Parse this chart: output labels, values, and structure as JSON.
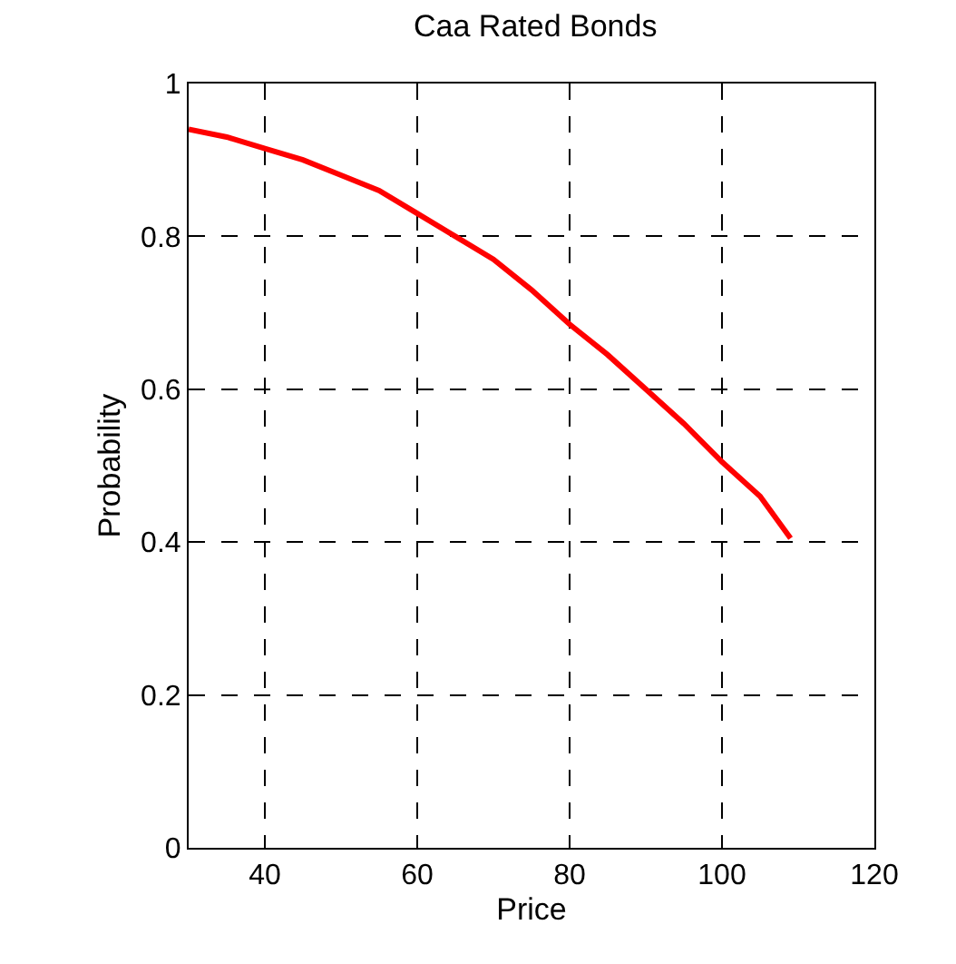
{
  "chart_data": {
    "type": "line",
    "title": "Caa Rated Bonds",
    "xlabel": "Price",
    "ylabel": "Probability",
    "series": [
      {
        "color": "#ff0000",
        "x": [
          30,
          35,
          40,
          45,
          50,
          55,
          60,
          65,
          70,
          75,
          80,
          85,
          90,
          95,
          100,
          105,
          109
        ],
        "values": [
          0.94,
          0.93,
          0.915,
          0.9,
          0.88,
          0.86,
          0.83,
          0.8,
          0.77,
          0.73,
          0.685,
          0.645,
          0.6,
          0.555,
          0.505,
          0.46,
          0.405
        ]
      }
    ],
    "xlim": [
      30,
      120
    ],
    "xticks": [
      40,
      60,
      80,
      100,
      120
    ],
    "ylim": [
      0,
      1
    ],
    "yticks": [
      0,
      0.2,
      0.4,
      0.6,
      0.8,
      1
    ],
    "grid": true,
    "marker": "none",
    "line_style": "solid"
  }
}
